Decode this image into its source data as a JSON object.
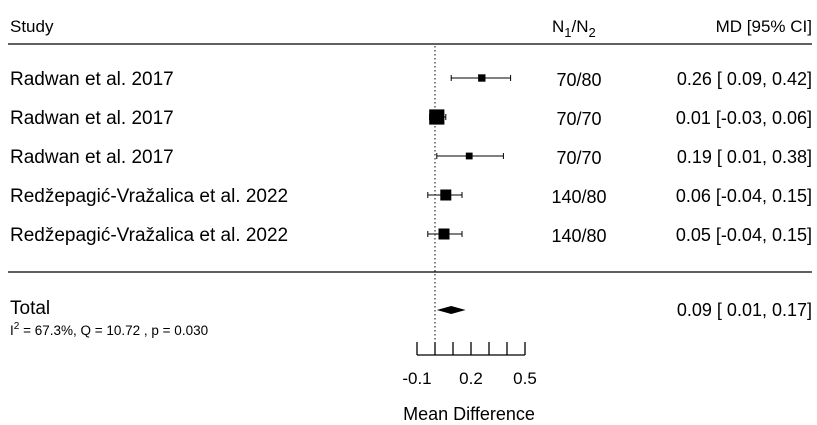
{
  "chart_data": {
    "type": "forest",
    "headers": {
      "study": "Study",
      "n_main": "N",
      "n_sub1": "1",
      "n_slash": "/",
      "n_sub2": "2",
      "effect": "MD [95% CI]"
    },
    "studies": [
      {
        "name": "Radwan et al. 2017",
        "n": "70/80",
        "ci_text": "0.26 [ 0.09, 0.42]",
        "md": 0.26,
        "lower": 0.09,
        "upper": 0.42,
        "weight": 0.12
      },
      {
        "name": "Radwan et al. 2017",
        "n": "70/70",
        "ci_text": "0.01 [-0.03, 0.06]",
        "md": 0.01,
        "lower": -0.03,
        "upper": 0.06,
        "weight": 0.4
      },
      {
        "name": "Radwan et al. 2017",
        "n": "70/70",
        "ci_text": "0.19 [ 0.01, 0.38]",
        "md": 0.19,
        "lower": 0.01,
        "upper": 0.38,
        "weight": 0.1
      },
      {
        "name": "Redžepagić-Vražalica et al. 2022",
        "n": "140/80",
        "ci_text": "0.06 [-0.04, 0.15]",
        "md": 0.06,
        "lower": -0.04,
        "upper": 0.15,
        "weight": 0.25
      },
      {
        "name": "Redžepagić-Vražalica et al. 2022",
        "n": "140/80",
        "ci_text": "0.05 [-0.04, 0.15]",
        "md": 0.05,
        "lower": -0.04,
        "upper": 0.15,
        "weight": 0.25
      }
    ],
    "total": {
      "label": "Total",
      "ci_text": "0.09 [ 0.01, 0.17]",
      "md": 0.09,
      "lower": 0.01,
      "upper": 0.17,
      "i2_prefix": "I",
      "i2_sup": "2",
      "het_text": " = 67.3%, Q = 10.72 , p  = 0.030"
    },
    "x_axis": {
      "label": "Mean Difference",
      "range": [
        -0.1,
        0.5
      ],
      "ticks": [
        -0.1,
        0.0,
        0.1,
        0.2,
        0.3,
        0.4,
        0.5
      ],
      "tick_labels": [
        {
          "value": -0.1,
          "label": "-0.1"
        },
        {
          "value": 0.2,
          "label": "0.2"
        },
        {
          "value": 0.5,
          "label": "0.5"
        }
      ],
      "reference_line": 0
    }
  }
}
